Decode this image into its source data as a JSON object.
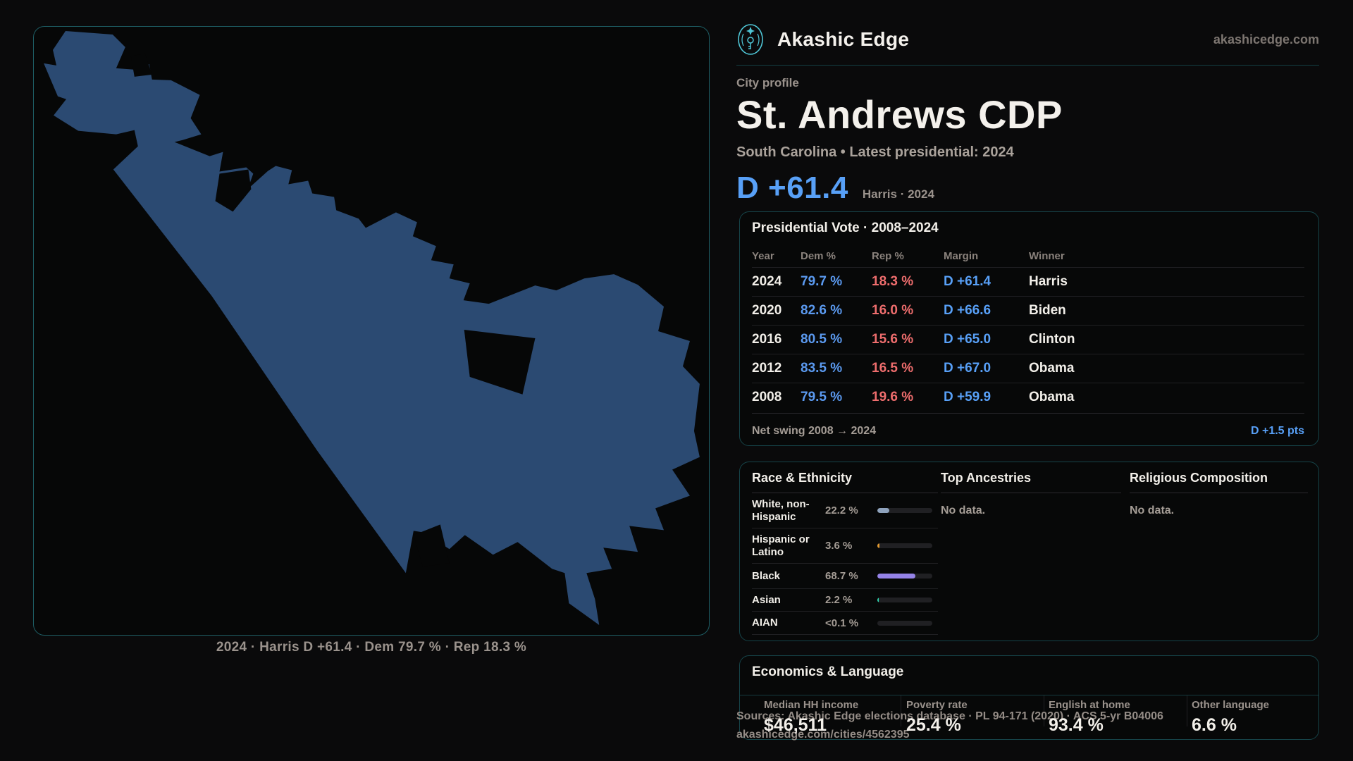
{
  "brand": {
    "name": "Akashic Edge",
    "domain": "akashicedge.com"
  },
  "profile": {
    "kicker": "City profile",
    "title": "St. Andrews CDP",
    "subtitle": "South Carolina • Latest presidential: 2024",
    "headline_margin": "D +61.4",
    "headline_context": "Harris · 2024"
  },
  "map": {
    "fill": "#2b4a72",
    "caption": "2024 · Harris D +61.4 · Dem 79.7 % · Rep 18.3 %"
  },
  "presidential_vote": {
    "title": "Presidential Vote · 2008–2024",
    "columns": [
      "Year",
      "Dem %",
      "Rep %",
      "Margin",
      "Winner"
    ],
    "rows": [
      {
        "year": "2024",
        "dem": "79.7 %",
        "rep": "18.3 %",
        "margin": "D +61.4",
        "winner": "Harris"
      },
      {
        "year": "2020",
        "dem": "82.6 %",
        "rep": "16.0 %",
        "margin": "D +66.6",
        "winner": "Biden"
      },
      {
        "year": "2016",
        "dem": "80.5 %",
        "rep": "15.6 %",
        "margin": "D +65.0",
        "winner": "Clinton"
      },
      {
        "year": "2012",
        "dem": "83.5 %",
        "rep": "16.5 %",
        "margin": "D +67.0",
        "winner": "Obama"
      },
      {
        "year": "2008",
        "dem": "79.5 %",
        "rep": "19.6 %",
        "margin": "D +59.9",
        "winner": "Obama"
      }
    ],
    "net_swing_label": "Net swing 2008 → 2024",
    "net_swing_value": "D +1.5 pts"
  },
  "race_ethnicity": {
    "title": "Race & Ethnicity",
    "rows": [
      {
        "label": "White, non-Hispanic",
        "value": "22.2 %",
        "pct": 22.2,
        "color": "#8fa3bd"
      },
      {
        "label": "Hispanic or Latino",
        "value": "3.6 %",
        "pct": 3.6,
        "color": "#e2992f"
      },
      {
        "label": "Black",
        "value": "68.7 %",
        "pct": 68.7,
        "color": "#9583e8"
      },
      {
        "label": "Asian",
        "value": "2.2 %",
        "pct": 2.2,
        "color": "#2fd4ae"
      },
      {
        "label": "AIAN",
        "value": "<0.1 %",
        "pct": 0,
        "color": "#8fa3bd"
      }
    ]
  },
  "top_ancestries": {
    "title": "Top Ancestries",
    "empty": "No data."
  },
  "religious_composition": {
    "title": "Religious Composition",
    "empty": "No data."
  },
  "economics": {
    "title": "Economics & Language",
    "stats": [
      {
        "label": "Median HH income",
        "value": "$46,511"
      },
      {
        "label": "Poverty rate",
        "value": "25.4 %"
      },
      {
        "label": "English at home",
        "value": "93.4 %"
      },
      {
        "label": "Other language",
        "value": "6.6 %"
      }
    ]
  },
  "footer": {
    "sources": "Sources: Akashic Edge elections database · PL 94-171 (2020) · ACS 5-yr B04006",
    "permalink": "akashicedge.com/cities/4562395"
  },
  "colors": {
    "accent_teal": "#4fc6d6",
    "dem_blue": "#5b9af0",
    "rep_red": "#ee6d6d",
    "margin_blue": "#58a0f7"
  }
}
